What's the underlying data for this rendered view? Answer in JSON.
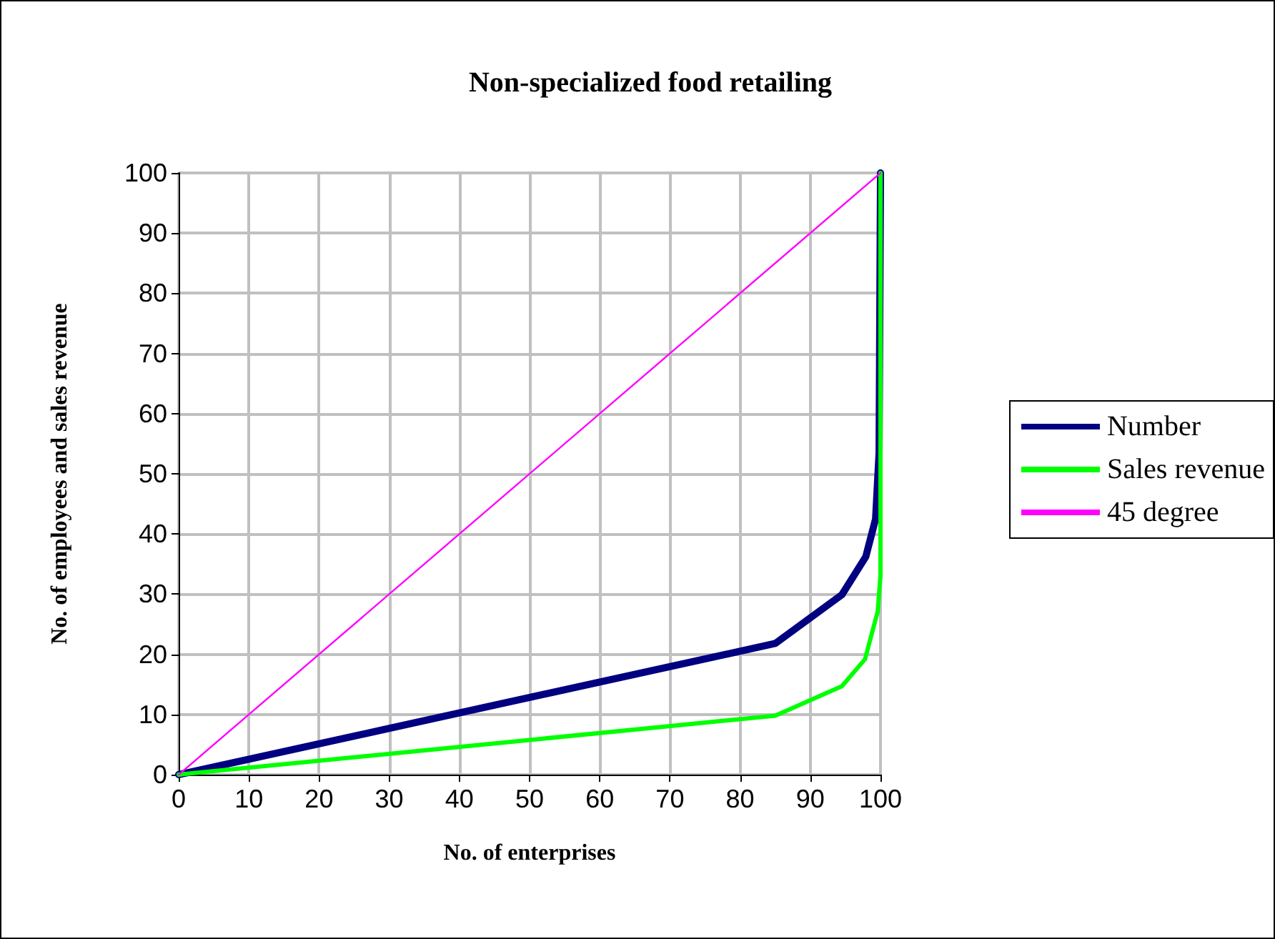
{
  "chart_data": {
    "type": "line",
    "title": "Non-specialized food retailing",
    "xlabel": "No. of enterprises",
    "ylabel": "No. of employees and sales revenue",
    "xlim": [
      0,
      100
    ],
    "xticks": [
      0,
      10,
      20,
      30,
      40,
      50,
      60,
      70,
      80,
      90,
      100
    ],
    "ylim": [
      0,
      100
    ],
    "yticks": [
      0,
      10,
      20,
      30,
      40,
      50,
      60,
      70,
      80,
      90,
      100
    ],
    "grid": true,
    "legend": "right",
    "marker": "none",
    "line_style": "solid",
    "series": [
      {
        "name": "Number",
        "color": "#000080",
        "x": [
          0,
          85,
          94.5,
          97.9,
          99.3,
          99.8,
          100
        ],
        "values": [
          0,
          21.8,
          29.9,
          36.2,
          42.5,
          53.5,
          100
        ]
      },
      {
        "name": "Sales revenue",
        "color": "#00ff00",
        "x": [
          0,
          85,
          94.5,
          97.8,
          99.6,
          100,
          100
        ],
        "values": [
          0,
          9.8,
          14.7,
          19.2,
          27.1,
          33.1,
          100
        ]
      },
      {
        "name": "45 degree",
        "color": "#ff00ff",
        "x": [
          0,
          100
        ],
        "values": [
          0,
          100
        ]
      }
    ]
  }
}
